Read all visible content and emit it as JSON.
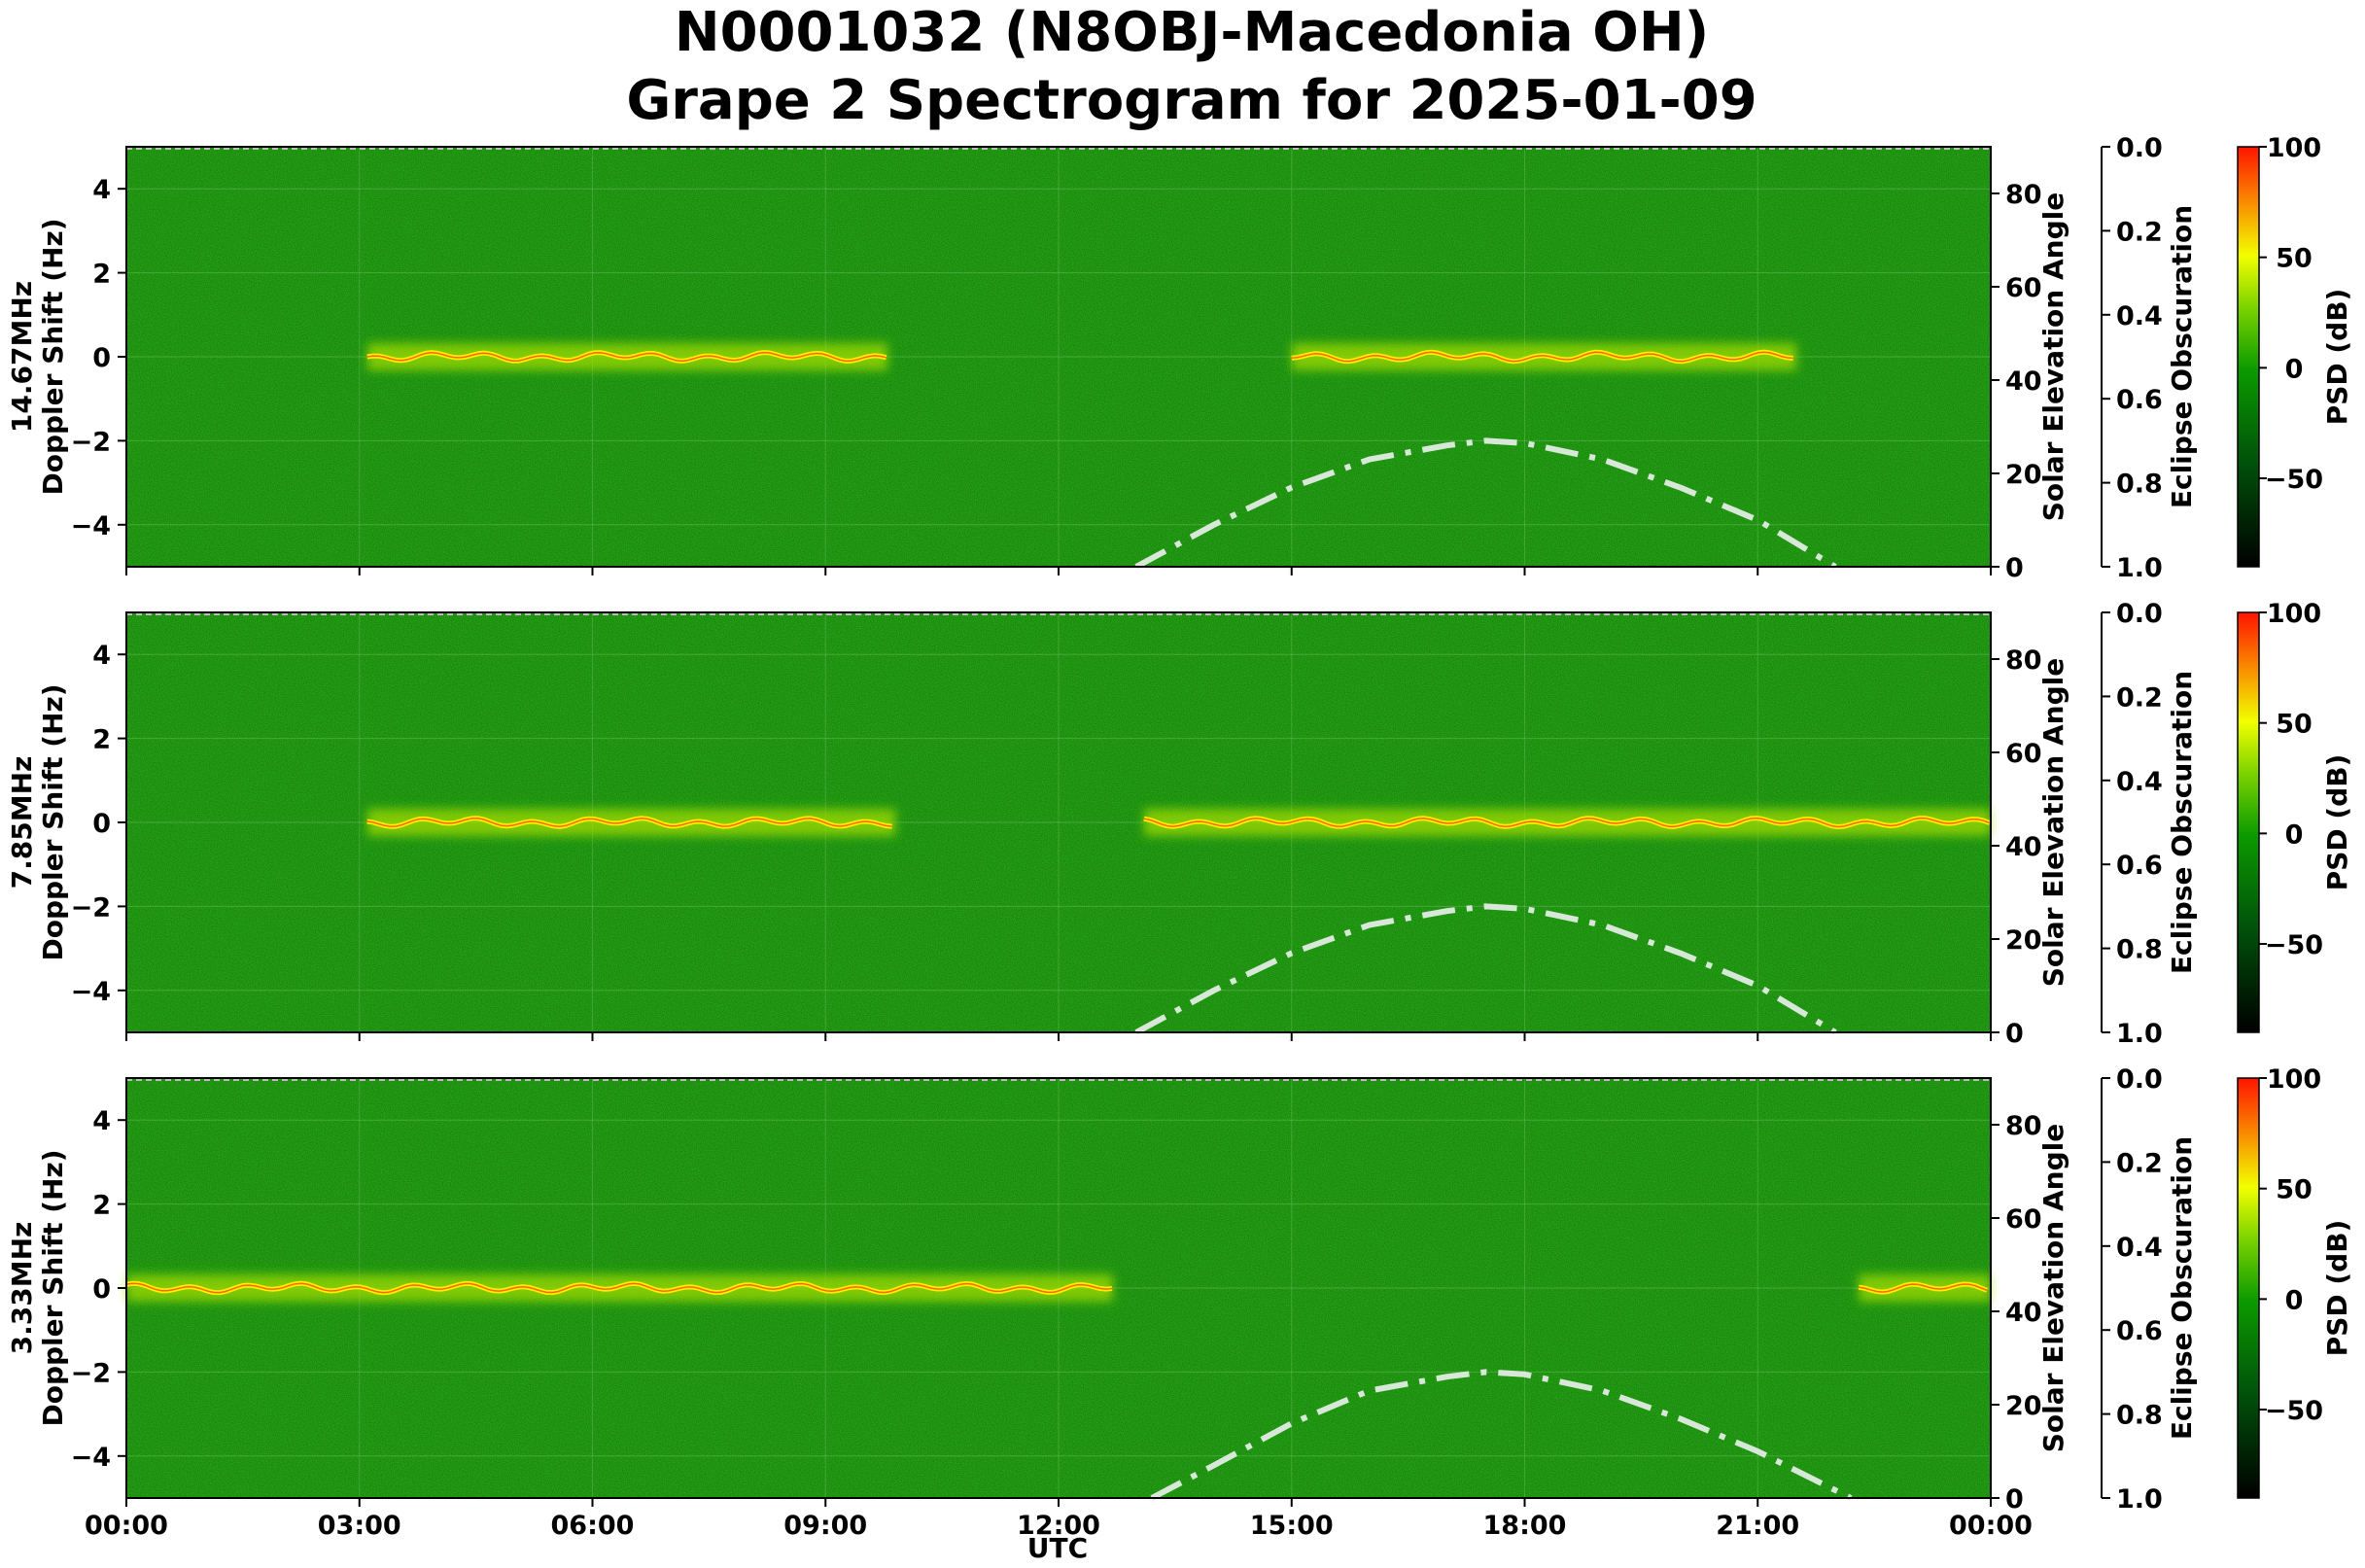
{
  "title_line1": "N0001032 (N8OBJ-Macedonia OH)",
  "title_line2": "Grape 2 Spectrogram for 2025-01-09",
  "x_axis": {
    "label": "UTC",
    "ticks": [
      "00:00",
      "03:00",
      "06:00",
      "09:00",
      "12:00",
      "15:00",
      "18:00",
      "21:00",
      "00:00"
    ]
  },
  "panels": [
    {
      "freq_label": "14.67MHz",
      "ylabel": "Doppler Shift (Hz)"
    },
    {
      "freq_label": "7.85MHz",
      "ylabel": "Doppler Shift (Hz)"
    },
    {
      "freq_label": "3.33MHz",
      "ylabel": "Doppler Shift (Hz)"
    }
  ],
  "elevation_label": "Solar Elevation Angle",
  "eclipse_label": "Eclipse Obscuration",
  "colorbar_label": "PSD (dB)",
  "colors": {
    "spectrogram_base": "#0a7a00",
    "carrier_trace": "#ffee00",
    "strong_trace": "#ff4400",
    "elevation_curve": "#d8e8d8"
  },
  "chart_data": [
    {
      "type": "heatmap",
      "title": "N0001032 (N8OBJ-Macedonia OH) Grape 2 Spectrogram for 2025-01-09",
      "panel": "14.67MHz",
      "xlabel": "UTC",
      "ylabel": "Doppler Shift (Hz)",
      "xlim_hours": [
        0,
        24
      ],
      "ylim": [
        -5,
        5
      ],
      "y_ticks": [
        -4,
        -2,
        0,
        2,
        4
      ],
      "secondary_y": {
        "label": "Solar Elevation Angle",
        "ylim": [
          0,
          90
        ],
        "ticks": [
          0,
          20,
          40,
          60,
          80
        ]
      },
      "eclipse_axis": {
        "label": "Eclipse Obscuration",
        "ticks": [
          0.0,
          0.2,
          0.4,
          0.6,
          0.8,
          1.0
        ]
      },
      "colorbar": {
        "label": "PSD (dB)",
        "range": [
          -90,
          100
        ],
        "ticks": [
          -50,
          0,
          50,
          100
        ]
      },
      "carrier_trace_segments": [
        [
          3.1,
          9.8
        ],
        [
          15.0,
          21.5
        ]
      ],
      "solar_elevation": {
        "hours": [
          13,
          14,
          15,
          16,
          17,
          17.5,
          18,
          19,
          20,
          21,
          22
        ],
        "degrees": [
          0,
          9,
          17,
          23,
          26,
          27,
          26.5,
          23,
          17,
          10,
          0
        ]
      }
    },
    {
      "type": "heatmap",
      "panel": "7.85MHz",
      "xlabel": "UTC",
      "ylabel": "Doppler Shift (Hz)",
      "xlim_hours": [
        0,
        24
      ],
      "ylim": [
        -5,
        5
      ],
      "y_ticks": [
        -4,
        -2,
        0,
        2,
        4
      ],
      "secondary_y": {
        "label": "Solar Elevation Angle",
        "ylim": [
          0,
          90
        ],
        "ticks": [
          0,
          20,
          40,
          60,
          80
        ]
      },
      "eclipse_axis": {
        "label": "Eclipse Obscuration",
        "ticks": [
          0.0,
          0.2,
          0.4,
          0.6,
          0.8,
          1.0
        ]
      },
      "colorbar": {
        "label": "PSD (dB)",
        "range": [
          -90,
          100
        ],
        "ticks": [
          -50,
          0,
          50,
          100
        ]
      },
      "carrier_trace_segments": [
        [
          3.1,
          9.9
        ],
        [
          13.1,
          24.0
        ]
      ],
      "solar_elevation": {
        "hours": [
          13,
          14,
          15,
          16,
          17,
          17.5,
          18,
          19,
          20,
          21,
          22
        ],
        "degrees": [
          0,
          9,
          17,
          23,
          26,
          27,
          26.5,
          23,
          17,
          10,
          0
        ]
      }
    },
    {
      "type": "heatmap",
      "panel": "3.33MHz",
      "xlabel": "UTC",
      "ylabel": "Doppler Shift (Hz)",
      "xlim_hours": [
        0,
        24
      ],
      "ylim": [
        -5,
        5
      ],
      "y_ticks": [
        -4,
        -2,
        0,
        2,
        4
      ],
      "secondary_y": {
        "label": "Solar Elevation Angle",
        "ylim": [
          0,
          90
        ],
        "ticks": [
          0,
          20,
          40,
          60,
          80
        ]
      },
      "eclipse_axis": {
        "label": "Eclipse Obscuration",
        "ticks": [
          0.0,
          0.2,
          0.4,
          0.6,
          0.8,
          1.0
        ]
      },
      "colorbar": {
        "label": "PSD (dB)",
        "range": [
          -90,
          100
        ],
        "ticks": [
          -50,
          0,
          50,
          100
        ]
      },
      "carrier_trace_segments": [
        [
          0.0,
          12.7
        ],
        [
          22.3,
          24.0
        ]
      ],
      "solar_elevation": {
        "hours": [
          13.2,
          14,
          15,
          16,
          17,
          17.5,
          18,
          19,
          20,
          21,
          22.2
        ],
        "degrees": [
          0,
          7,
          16,
          23,
          26,
          27,
          26.5,
          23,
          17,
          10,
          0
        ]
      }
    }
  ]
}
